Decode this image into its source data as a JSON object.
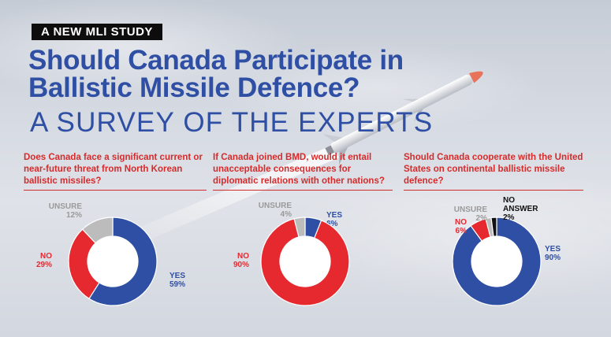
{
  "kicker": "A NEW MLI STUDY",
  "title_line1": "Should Canada Participate in",
  "title_line2": "Ballistic Missile Defence?",
  "subtitle": "A SURVEY OF THE EXPERTS",
  "colors": {
    "yes": "#2e4fa3",
    "no": "#e5292f",
    "unsure": "#bcbcbc",
    "no_answer": "#111111"
  },
  "chart_data": [
    {
      "type": "pie",
      "title": "Does Canada face a significant current or near-future threat from North Korean ballistic missiles?",
      "slices": [
        {
          "label": "YES",
          "value": 59,
          "value_text": "59%",
          "color": "#2e4fa3",
          "label_color": "#2e4fa3"
        },
        {
          "label": "NO",
          "value": 29,
          "value_text": "29%",
          "color": "#e5292f",
          "label_color": "#e5292f"
        },
        {
          "label": "UNSURE",
          "value": 12,
          "value_text": "12%",
          "color": "#bcbcbc",
          "label_color": "#9a9a9a"
        }
      ]
    },
    {
      "type": "pie",
      "title": "If Canada joined BMD, would it entail unacceptable consequences for diplomatic relations with other nations?",
      "slices": [
        {
          "label": "YES",
          "value": 6,
          "value_text": "6%",
          "color": "#2e4fa3",
          "label_color": "#2e4fa3"
        },
        {
          "label": "NO",
          "value": 90,
          "value_text": "90%",
          "color": "#e5292f",
          "label_color": "#e5292f"
        },
        {
          "label": "UNSURE",
          "value": 4,
          "value_text": "4%",
          "color": "#bcbcbc",
          "label_color": "#9a9a9a"
        }
      ]
    },
    {
      "type": "pie",
      "title": "Should Canada cooperate with the United States on continental ballistic missile defence?",
      "slices": [
        {
          "label": "YES",
          "value": 90,
          "value_text": "90%",
          "color": "#2e4fa3",
          "label_color": "#2e4fa3"
        },
        {
          "label": "NO",
          "value": 6,
          "value_text": "6%",
          "color": "#e5292f",
          "label_color": "#e5292f"
        },
        {
          "label": "UNSURE",
          "value": 2,
          "value_text": "2%",
          "color": "#bcbcbc",
          "label_color": "#9a9a9a"
        },
        {
          "label": "NO ANSWER",
          "value": 2,
          "value_text": "2%",
          "color": "#111111",
          "label_color": "#111111"
        }
      ]
    }
  ]
}
